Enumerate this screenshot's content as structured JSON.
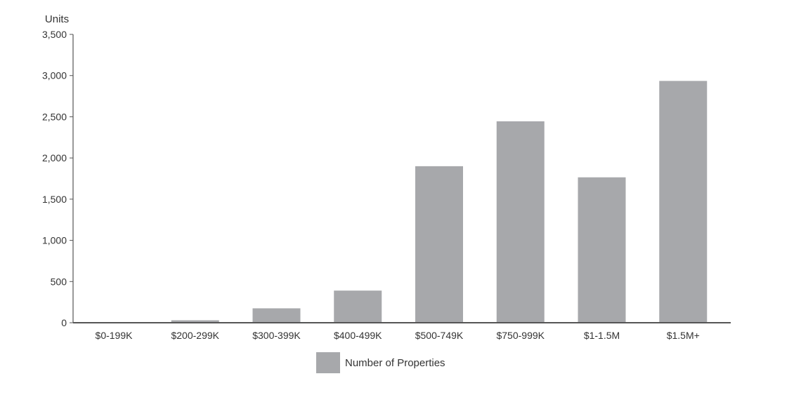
{
  "chart_data": {
    "type": "bar",
    "ylabel": "Units",
    "ylim": [
      0,
      3500
    ],
    "yticks": [
      0,
      500,
      1000,
      1500,
      2000,
      2500,
      3000,
      3500
    ],
    "ytick_labels": [
      "0",
      "500",
      "1,000",
      "1,500",
      "2,000",
      "2,500",
      "3,000",
      "3,500"
    ],
    "categories": [
      "$0-199K",
      "$200-299K",
      "$300-399K",
      "$400-499K",
      "$500-749K",
      "$750-999K",
      "$1-1.5M",
      "$1.5M+"
    ],
    "series": [
      {
        "name": "Number of Properties",
        "color": "#a7a8ab",
        "values": [
          5,
          30,
          175,
          390,
          1900,
          2445,
          1765,
          2935
        ]
      }
    ],
    "legend_position": "bottom-center",
    "grid": false
  }
}
